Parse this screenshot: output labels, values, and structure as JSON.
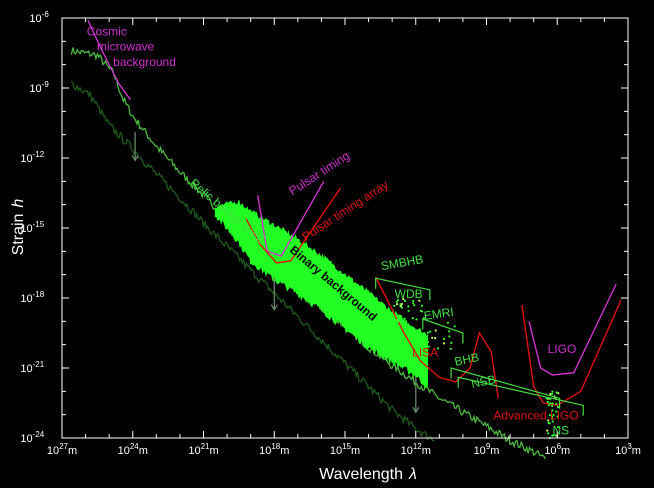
{
  "chart_data": {
    "type": "area",
    "xlabel": "Wavelength",
    "xlabel_symbol": "λ",
    "ylabel": "Strain",
    "ylabel_symbol": "h",
    "x_scale": "log",
    "y_scale": "log",
    "x_reversed": true,
    "x_unit": "m",
    "xlim": [
      1e+27,
      1000.0
    ],
    "ylim": [
      1e-24,
      1e-06
    ],
    "x_ticks": [
      {
        "base": "10",
        "exp": "27",
        "unit": "m",
        "value": 27
      },
      {
        "base": "10",
        "exp": "24",
        "unit": "m",
        "value": 24
      },
      {
        "base": "10",
        "exp": "21",
        "unit": "m",
        "value": 21
      },
      {
        "base": "10",
        "exp": "18",
        "unit": "m",
        "value": 18
      },
      {
        "base": "10",
        "exp": "15",
        "unit": "m",
        "value": 15
      },
      {
        "base": "10",
        "exp": "12",
        "unit": "m",
        "value": 12
      },
      {
        "base": "10",
        "exp": "9",
        "unit": "m",
        "value": 9
      },
      {
        "base": "10",
        "exp": "6",
        "unit": "m",
        "value": 6
      },
      {
        "base": "10",
        "exp": "3",
        "unit": "m",
        "value": 3
      }
    ],
    "y_ticks": [
      {
        "base": "10",
        "exp": "-6",
        "value": -6
      },
      {
        "base": "10",
        "exp": "-9",
        "value": -9
      },
      {
        "base": "10",
        "exp": "-12",
        "value": -12
      },
      {
        "base": "10",
        "exp": "-15",
        "value": -15
      },
      {
        "base": "10",
        "exp": "-18",
        "value": -18
      },
      {
        "base": "10",
        "exp": "-21",
        "value": -21
      },
      {
        "base": "10",
        "exp": "-24",
        "value": -24
      }
    ],
    "colors": {
      "background": "#000000",
      "relic": "#4db840",
      "relic_dark": "#1e5a1a",
      "binary": "#22ff22",
      "magenta": "#cc33cc",
      "red": "#dd1111",
      "green_label": "#44dd44",
      "gray_arrow": "#6a8a6a"
    },
    "series": [
      {
        "name": "Relic background",
        "kind": "noisy-line",
        "color": "#4db840",
        "log_lambda": [
          26.6,
          25.5,
          24.8,
          24.4,
          24,
          23,
          22,
          21,
          20,
          19,
          18,
          17,
          16,
          15,
          14,
          13,
          12,
          11,
          10,
          9,
          8,
          7,
          6.5
        ],
        "log_h": [
          -7.4,
          -7.6,
          -8.4,
          -9.5,
          -10.2,
          -11.5,
          -12.6,
          -13.6,
          -14.6,
          -15.6,
          -16.6,
          -17.5,
          -18.4,
          -19.2,
          -20.1,
          -20.9,
          -21.6,
          -22.3,
          -22.9,
          -23.5,
          -24.1,
          -24.6,
          -24.9
        ]
      },
      {
        "name": "Relic background (lower)",
        "kind": "noisy-line",
        "color": "#1e5a1a",
        "log_lambda": [
          26.6,
          25.8,
          25,
          24,
          23,
          22,
          21,
          20,
          19,
          18,
          17,
          16,
          15,
          14,
          13,
          12,
          11.2
        ],
        "log_h": [
          -8.8,
          -9.3,
          -10.6,
          -11.6,
          -12.7,
          -13.7,
          -14.8,
          -15.8,
          -16.8,
          -17.8,
          -18.8,
          -19.8,
          -20.8,
          -21.8,
          -22.8,
          -23.6,
          -24.1
        ]
      },
      {
        "name": "Binary background",
        "kind": "band",
        "color": "#22ff22",
        "upper": {
          "log_lambda": [
            20.5,
            19.5,
            19,
            18,
            17,
            16,
            15,
            14,
            13,
            12,
            11.5
          ],
          "log_h": [
            -14.1,
            -13.9,
            -14.3,
            -14.9,
            -15.5,
            -16.2,
            -17.0,
            -17.8,
            -18.6,
            -19.3,
            -19.6
          ]
        },
        "lower": {
          "log_lambda": [
            20.5,
            19.5,
            19,
            18,
            17,
            16,
            15,
            14,
            13,
            12,
            11.5
          ],
          "log_h": [
            -14.4,
            -15.6,
            -16.4,
            -17.2,
            -17.8,
            -18.5,
            -19.3,
            -20.1,
            -20.7,
            -21.3,
            -21.8
          ]
        }
      },
      {
        "name": "Cosmic microwave background",
        "kind": "line",
        "color": "#cc33cc",
        "log_lambda": [
          25.9,
          25.3,
          24.6,
          24.1
        ],
        "log_h": [
          -6.1,
          -7.4,
          -8.8,
          -9.5
        ]
      },
      {
        "name": "Pulsar timing",
        "kind": "line",
        "color": "#cc33cc",
        "log_lambda": [
          18.7,
          18.3,
          17.7,
          15.9
        ],
        "log_h": [
          -13.6,
          -16.0,
          -16.2,
          -13.0
        ]
      },
      {
        "name": "Pulsar timing array",
        "kind": "line",
        "color": "#dd1111",
        "log_lambda": [
          19.2,
          18.6,
          17.9,
          17.3,
          15.2
        ],
        "log_h": [
          -14.6,
          -15.7,
          -16.5,
          -16.4,
          -13.3
        ]
      },
      {
        "name": "LISA",
        "kind": "line",
        "color": "#dd1111",
        "log_lambda": [
          13.7,
          12.5,
          11.8,
          11,
          10.3,
          9.7,
          9.3,
          8.8,
          8.5
        ],
        "log_h": [
          -17.1,
          -19.5,
          -20.7,
          -21.4,
          -21.6,
          -21.0,
          -19.5,
          -20.3,
          -22.3
        ]
      },
      {
        "name": "LIGO",
        "kind": "line",
        "color": "#cc33cc",
        "log_lambda": [
          7.2,
          6.7,
          6.2,
          5.3,
          3.5
        ],
        "log_h": [
          -19.0,
          -21.0,
          -21.3,
          -21.2,
          -17.4
        ]
      },
      {
        "name": "Advanced LIGO",
        "kind": "line",
        "color": "#dd1111",
        "log_lambda": [
          7.5,
          7.0,
          6.6,
          6.0,
          5.0,
          3.3
        ],
        "log_h": [
          -18.3,
          -21.8,
          -22.5,
          -22.6,
          -22.0,
          -18.1
        ]
      }
    ],
    "brackets": [
      {
        "name": "SMBHB",
        "log_lambda": [
          13.7,
          11.4
        ],
        "log_h": [
          -17.15,
          -17.65
        ],
        "tick": 0.45
      },
      {
        "name": "EMRI",
        "log_lambda": [
          11.7,
          10.0
        ],
        "log_h": [
          -18.9,
          -19.5
        ],
        "tick": 0.45
      },
      {
        "name": "BHB",
        "log_lambda": [
          10.5,
          5.9
        ],
        "log_h": [
          -21.0,
          -22.3
        ],
        "tick": 0.45
      },
      {
        "name": "NSB",
        "log_lambda": [
          10.2,
          4.9
        ],
        "log_h": [
          -21.4,
          -22.6
        ],
        "tick": 0.45
      }
    ],
    "labels": [
      {
        "text": "Cosmic",
        "color": "#cc33cc",
        "log_lambda": 25.1,
        "log_h": -6.75,
        "anchor": "middle",
        "rotate": 0,
        "size": 12
      },
      {
        "text": "microwave",
        "color": "#cc33cc",
        "log_lambda": 24.3,
        "log_h": -7.4,
        "anchor": "middle",
        "rotate": 0,
        "size": 12
      },
      {
        "text": "background",
        "color": "#cc33cc",
        "log_lambda": 23.5,
        "log_h": -8.05,
        "anchor": "middle",
        "rotate": 0,
        "size": 12
      },
      {
        "text": "Pulsar timing",
        "color": "#cc33cc",
        "log_lambda": 16.0,
        "log_h": -12.8,
        "anchor": "middle",
        "rotate": -33,
        "size": 12
      },
      {
        "text": "Pulsar timing array",
        "color": "#dd1111",
        "log_lambda": 14.9,
        "log_h": -14.4,
        "anchor": "middle",
        "rotate": -33,
        "size": 12
      },
      {
        "text": "Relic background",
        "color": "#44dd44",
        "log_lambda": 20.1,
        "log_h": -14.4,
        "anchor": "middle",
        "rotate": 40,
        "size": 12
      },
      {
        "text": "Binary background",
        "color": "#000000",
        "log_lambda": 15.6,
        "log_h": -17.5,
        "anchor": "middle",
        "rotate": 40,
        "size": 12,
        "bold": true
      },
      {
        "text": "SMBHB",
        "color": "#44dd44",
        "log_lambda": 12.55,
        "log_h": -16.65,
        "anchor": "middle",
        "rotate": -10,
        "size": 12
      },
      {
        "text": "WDB",
        "color": "#44dd44",
        "log_lambda": 12.3,
        "log_h": -18.0,
        "anchor": "middle",
        "rotate": 0,
        "size": 12
      },
      {
        "text": "EMRI",
        "color": "#44dd44",
        "log_lambda": 11.0,
        "log_h": -18.85,
        "anchor": "middle",
        "rotate": -8,
        "size": 12
      },
      {
        "text": "LISA",
        "color": "#dd1111",
        "log_lambda": 11.6,
        "log_h": -20.5,
        "anchor": "middle",
        "rotate": 0,
        "size": 12
      },
      {
        "text": "BHB",
        "color": "#44dd44",
        "log_lambda": 9.8,
        "log_h": -20.8,
        "anchor": "middle",
        "rotate": -12,
        "size": 12
      },
      {
        "text": "NSB",
        "color": "#44dd44",
        "log_lambda": 9.1,
        "log_h": -21.75,
        "anchor": "middle",
        "rotate": -12,
        "size": 12
      },
      {
        "text": "LIGO",
        "color": "#cc33cc",
        "log_lambda": 5.8,
        "log_h": -20.35,
        "anchor": "middle",
        "rotate": 0,
        "size": 12
      },
      {
        "text": "Advanced LIGO",
        "color": "#dd1111",
        "log_lambda": 6.9,
        "log_h": -23.2,
        "anchor": "middle",
        "rotate": 0,
        "size": 12
      },
      {
        "text": "NS",
        "color": "#44dd44",
        "log_lambda": 5.85,
        "log_h": -23.85,
        "anchor": "middle",
        "rotate": 0,
        "size": 12
      }
    ],
    "down_arrows": [
      {
        "log_lambda": 23.9,
        "from": -10.9,
        "to": -12.1
      },
      {
        "log_lambda": 18.0,
        "from": -17.1,
        "to": -18.5
      },
      {
        "log_lambda": 12.0,
        "from": -21.4,
        "to": -22.9
      }
    ],
    "scatter_points": [
      {
        "name": "WDB points",
        "center": [
          12.3,
          -18.5
        ],
        "spread": [
          0.7,
          0.5
        ],
        "count": 28
      },
      {
        "name": "EMRI points",
        "center": [
          10.9,
          -19.6
        ],
        "spread": [
          0.6,
          0.6
        ],
        "count": 16
      },
      {
        "name": "NS points",
        "center": [
          6.2,
          -23.0
        ],
        "spread": [
          0.25,
          1.0
        ],
        "count": 36
      }
    ]
  }
}
